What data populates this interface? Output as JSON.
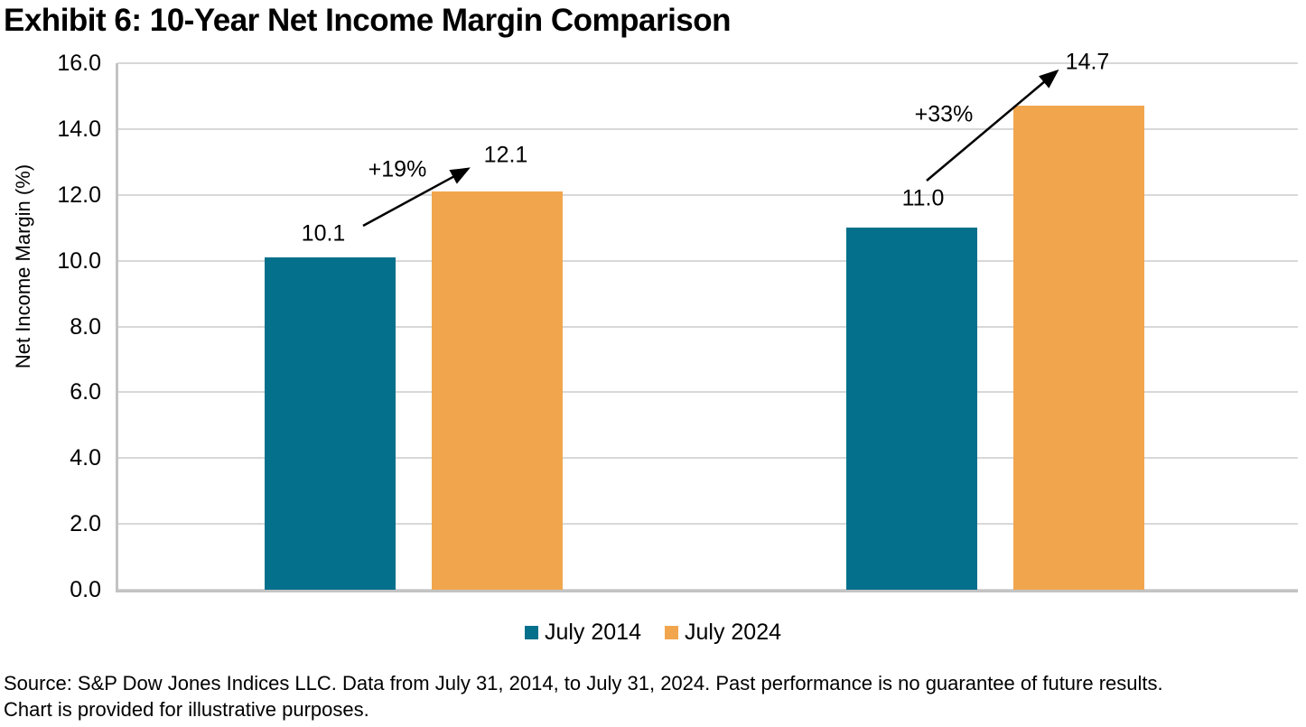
{
  "chart_data": {
    "type": "bar",
    "title": "Exhibit 6: 10-Year Net Income Margin Comparison",
    "ylabel": "Net Income Margin (%)",
    "xlabel": "",
    "ylim": [
      0,
      16
    ],
    "ytick_step": 2,
    "yticks": [
      "0.0",
      "2.0",
      "4.0",
      "6.0",
      "8.0",
      "10.0",
      "12.0",
      "14.0",
      "16.0"
    ],
    "grid": true,
    "legend_position": "bottom-center",
    "categories": [
      "",
      ""
    ],
    "series": [
      {
        "name": "July 2014",
        "color": "#04708C",
        "values": [
          10.1,
          11.0
        ],
        "labels": [
          "10.1",
          "11.0"
        ]
      },
      {
        "name": "July 2024",
        "color": "#F1A64E",
        "values": [
          12.1,
          14.7
        ],
        "labels": [
          "12.1",
          "14.7"
        ]
      }
    ],
    "annotations": [
      {
        "label": "+19%",
        "group": 0,
        "from_value": 10.1,
        "to_value": 12.1
      },
      {
        "label": "+33%",
        "group": 1,
        "from_value": 11.0,
        "to_value": 14.7
      }
    ],
    "colors": {
      "gridline": "#d8d8d8",
      "axis": "#c3c3c3",
      "arrow": "#000000",
      "text": "#000000"
    }
  },
  "source": {
    "lines": [
      "Source: S&P Dow Jones Indices LLC. Data from July 31, 2014, to July 31, 2024. Past performance is no guarantee of future results.",
      "Chart is provided for illustrative purposes."
    ]
  }
}
